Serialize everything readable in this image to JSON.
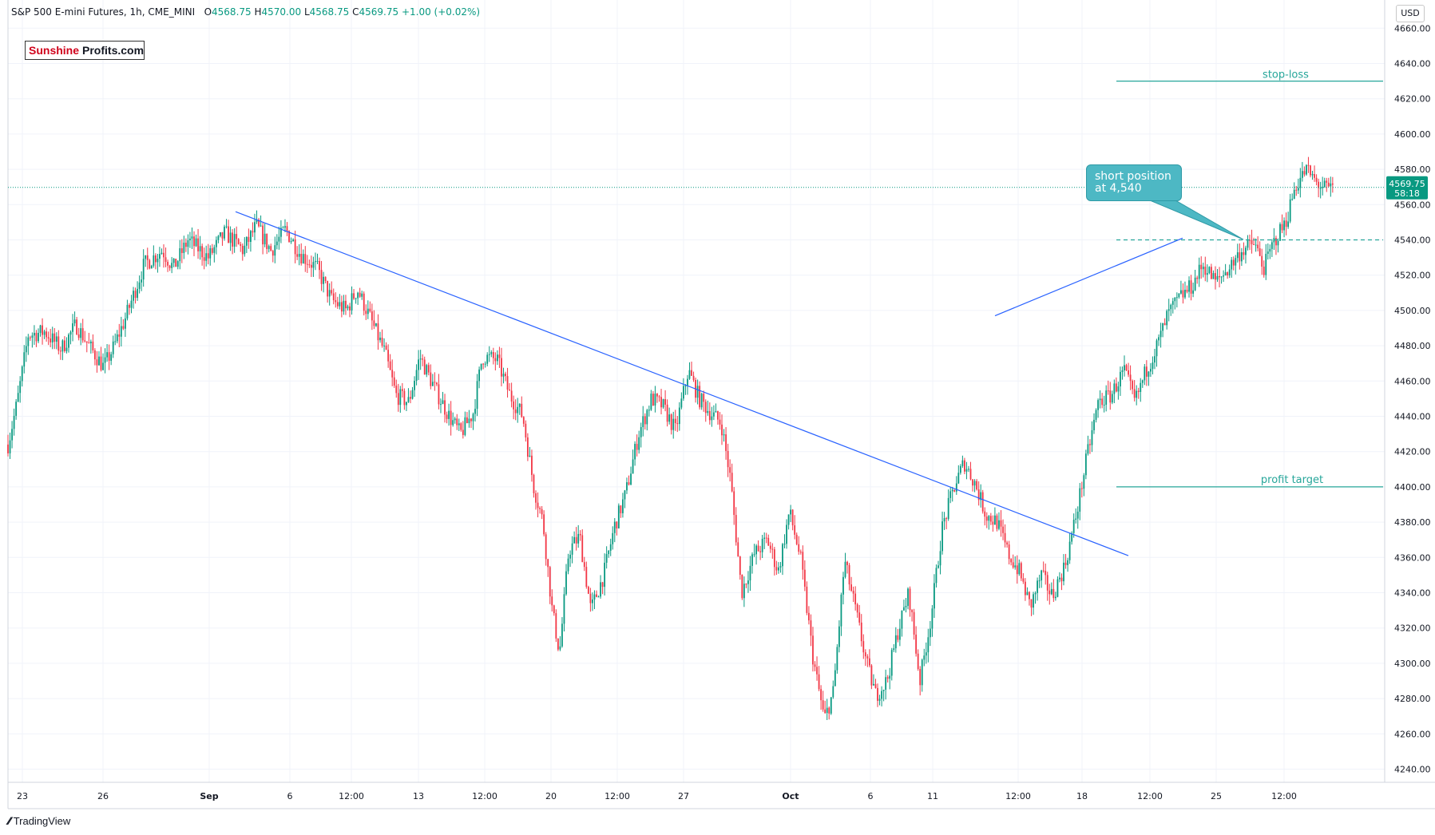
{
  "header": {
    "symbol": "S&P 500 E-mini Futures, 1h, CME_MINI",
    "open_label": "O",
    "open": "4568.75",
    "high_label": "H",
    "high": "4570.00",
    "low_label": "L",
    "low": "4568.75",
    "close_label": "C",
    "close": "4569.75",
    "change": "+1.00 (+0.02%)"
  },
  "logo": {
    "part1": "Sunshine",
    "part2": "Profits.com"
  },
  "currency": "USD",
  "footer": {
    "brand": "TradingView"
  },
  "price_badge": {
    "price": "4569.75",
    "countdown": "58:18"
  },
  "annotations": {
    "stop_loss": "stop-loss",
    "profit_target": "profit target",
    "callout_line1": "short position",
    "callout_line2": "at 4,540"
  },
  "colors": {
    "up": "#089981",
    "down": "#f23645",
    "trend": "#2962ff",
    "level": "#26a69a",
    "callout": "#4db8c4"
  },
  "chart_data": {
    "type": "candlestick",
    "title": "S&P 500 E-mini Futures, 1h, CME_MINI",
    "ylim": [
      4232,
      4668
    ],
    "y_ticks": [
      4240,
      4260,
      4280,
      4300,
      4320,
      4340,
      4360,
      4380,
      4400,
      4420,
      4440,
      4460,
      4480,
      4500,
      4520,
      4540,
      4560,
      4580,
      4600,
      4620,
      4640,
      4660
    ],
    "x_ticks": [
      "23",
      "26",
      "Sep",
      "6",
      "12:00",
      "13",
      "12:00",
      "20",
      "12:00",
      "27",
      "Oct",
      "6",
      "11",
      "12:00",
      "18",
      "12:00",
      "25",
      "12:00"
    ],
    "price_path": [
      [
        0,
        4424
      ],
      [
        10,
        4448
      ],
      [
        22,
        4486
      ],
      [
        40,
        4488
      ],
      [
        58,
        4478
      ],
      [
        74,
        4492
      ],
      [
        88,
        4480
      ],
      [
        104,
        4468
      ],
      [
        114,
        4478
      ],
      [
        128,
        4496
      ],
      [
        148,
        4526
      ],
      [
        168,
        4534
      ],
      [
        180,
        4524
      ],
      [
        196,
        4540
      ],
      [
        218,
        4530
      ],
      [
        236,
        4544
      ],
      [
        256,
        4534
      ],
      [
        270,
        4548
      ],
      [
        286,
        4534
      ],
      [
        302,
        4546
      ],
      [
        318,
        4532
      ],
      [
        336,
        4524
      ],
      [
        352,
        4506
      ],
      [
        368,
        4500
      ],
      [
        380,
        4512
      ],
      [
        392,
        4498
      ],
      [
        410,
        4476
      ],
      [
        422,
        4452
      ],
      [
        436,
        4448
      ],
      [
        448,
        4474
      ],
      [
        464,
        4456
      ],
      [
        480,
        4440
      ],
      [
        492,
        4430
      ],
      [
        506,
        4442
      ],
      [
        516,
        4474
      ],
      [
        532,
        4472
      ],
      [
        546,
        4452
      ],
      [
        560,
        4440
      ],
      [
        572,
        4400
      ],
      [
        582,
        4380
      ],
      [
        592,
        4330
      ],
      [
        600,
        4306
      ],
      [
        610,
        4364
      ],
      [
        622,
        4372
      ],
      [
        634,
        4330
      ],
      [
        648,
        4350
      ],
      [
        660,
        4378
      ],
      [
        672,
        4396
      ],
      [
        686,
        4430
      ],
      [
        700,
        4450
      ],
      [
        712,
        4446
      ],
      [
        726,
        4432
      ],
      [
        740,
        4466
      ],
      [
        752,
        4450
      ],
      [
        764,
        4442
      ],
      [
        776,
        4436
      ],
      [
        786,
        4404
      ],
      [
        798,
        4340
      ],
      [
        812,
        4362
      ],
      [
        826,
        4370
      ],
      [
        838,
        4352
      ],
      [
        850,
        4386
      ],
      [
        862,
        4360
      ],
      [
        876,
        4302
      ],
      [
        888,
        4268
      ],
      [
        898,
        4284
      ],
      [
        910,
        4358
      ],
      [
        922,
        4330
      ],
      [
        934,
        4300
      ],
      [
        944,
        4282
      ],
      [
        956,
        4290
      ],
      [
        968,
        4318
      ],
      [
        980,
        4340
      ],
      [
        992,
        4290
      ],
      [
        1004,
        4326
      ],
      [
        1016,
        4376
      ],
      [
        1028,
        4398
      ],
      [
        1040,
        4414
      ],
      [
        1052,
        4402
      ],
      [
        1064,
        4384
      ],
      [
        1076,
        4380
      ],
      [
        1088,
        4362
      ],
      [
        1100,
        4352
      ],
      [
        1112,
        4332
      ],
      [
        1124,
        4350
      ],
      [
        1136,
        4338
      ],
      [
        1150,
        4356
      ],
      [
        1162,
        4384
      ],
      [
        1174,
        4418
      ],
      [
        1186,
        4448
      ],
      [
        1200,
        4452
      ],
      [
        1214,
        4466
      ],
      [
        1226,
        4448
      ],
      [
        1238,
        4466
      ],
      [
        1250,
        4480
      ],
      [
        1262,
        4498
      ],
      [
        1276,
        4508
      ],
      [
        1288,
        4514
      ],
      [
        1300,
        4526
      ],
      [
        1314,
        4516
      ],
      [
        1328,
        4524
      ],
      [
        1342,
        4534
      ],
      [
        1356,
        4538
      ],
      [
        1366,
        4524
      ],
      [
        1378,
        4540
      ],
      [
        1390,
        4550
      ],
      [
        1400,
        4570
      ],
      [
        1412,
        4580
      ],
      [
        1424,
        4572
      ],
      [
        1436,
        4568
      ],
      [
        1442,
        4570
      ]
    ],
    "trendlines": [
      {
        "name": "descending",
        "points": [
          [
            295,
            4556
          ],
          [
            1413,
            4361
          ]
        ]
      },
      {
        "name": "ascending",
        "points": [
          [
            1246,
            4497
          ],
          [
            1481,
            4541
          ]
        ]
      }
    ],
    "levels": [
      {
        "name": "stop-loss",
        "price": 4630,
        "style": "solid"
      },
      {
        "name": "profit target",
        "price": 4400,
        "style": "solid"
      },
      {
        "name": "short entry",
        "price": 4540,
        "style": "dashed"
      },
      {
        "name": "last price",
        "price": 4569.75,
        "style": "dotted"
      }
    ],
    "last_price": 4569.75
  }
}
